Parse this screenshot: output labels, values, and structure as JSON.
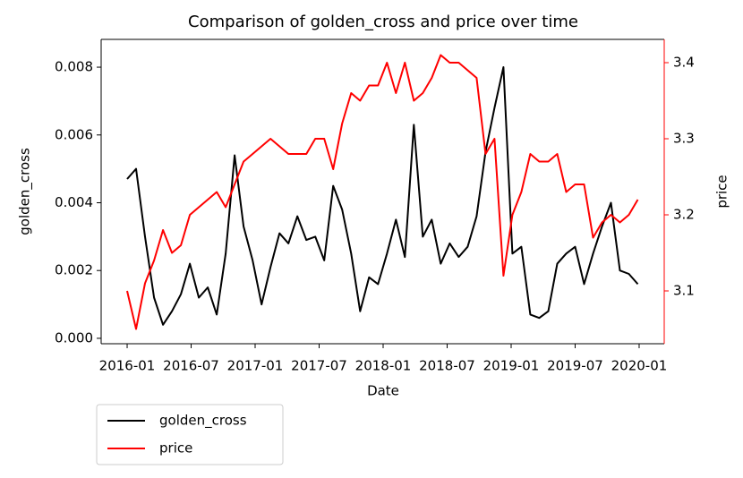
{
  "chart_data": {
    "type": "line",
    "title": "Comparison of golden_cross and price over time",
    "xlabel": "Date",
    "ylabel": "golden_cross",
    "y2label": "price",
    "x": [
      2016,
      2016.07,
      2016.14,
      2016.21,
      2016.28,
      2016.35,
      2016.42,
      2016.49,
      2016.56,
      2016.63,
      2016.7,
      2016.77,
      2016.84,
      2016.91,
      2016.98,
      2017.05,
      2017.12,
      2017.19,
      2017.26,
      2017.33,
      2017.4,
      2017.47,
      2017.54,
      2017.61,
      2017.68,
      2017.75,
      2017.82,
      2017.89,
      2017.96,
      2018.03,
      2018.1,
      2018.17,
      2018.24,
      2018.31,
      2018.38,
      2018.45,
      2018.52,
      2018.59,
      2018.66,
      2018.73,
      2018.8,
      2018.87,
      2018.94,
      2019.01,
      2019.08,
      2019.15,
      2019.22,
      2019.29,
      2019.36,
      2019.43,
      2019.5,
      2019.57,
      2019.64,
      2019.71,
      2019.78,
      2019.85,
      2019.92,
      2019.99
    ],
    "series": [
      {
        "name": "golden_cross",
        "color": "#000000",
        "values": [
          0.0047,
          0.005,
          0.003,
          0.0012,
          0.0004,
          0.0008,
          0.0013,
          0.0022,
          0.0012,
          0.0015,
          0.0007,
          0.0025,
          0.0054,
          0.0033,
          0.0023,
          0.001,
          0.0021,
          0.0031,
          0.0028,
          0.0036,
          0.0029,
          0.003,
          0.0023,
          0.0045,
          0.0038,
          0.0025,
          0.0008,
          0.0018,
          0.0016,
          0.0025,
          0.0035,
          0.0024,
          0.0063,
          0.003,
          0.0035,
          0.0022,
          0.0028,
          0.0024,
          0.0027,
          0.0036,
          0.0055,
          0.0068,
          0.008,
          0.0025,
          0.0027,
          0.0007,
          0.0006,
          0.0008,
          0.0022,
          0.0025,
          0.0027,
          0.0016,
          0.0025,
          0.0033,
          0.004,
          0.002,
          0.0019,
          0.0016
        ]
      },
      {
        "name": "price",
        "color": "#ff0000",
        "axis": "y2",
        "values": [
          3.1,
          3.05,
          3.11,
          3.14,
          3.18,
          3.15,
          3.16,
          3.2,
          3.21,
          3.22,
          3.23,
          3.21,
          3.24,
          3.27,
          3.28,
          3.29,
          3.3,
          3.29,
          3.28,
          3.28,
          3.28,
          3.3,
          3.3,
          3.26,
          3.32,
          3.36,
          3.35,
          3.37,
          3.37,
          3.4,
          3.36,
          3.4,
          3.35,
          3.36,
          3.38,
          3.41,
          3.4,
          3.4,
          3.39,
          3.38,
          3.28,
          3.3,
          3.12,
          3.2,
          3.23,
          3.28,
          3.27,
          3.27,
          3.28,
          3.23,
          3.24,
          3.24,
          3.17,
          3.19,
          3.2,
          3.19,
          3.2,
          3.22
        ]
      }
    ],
    "xlim": [
      2015.797,
      2020.196
    ],
    "xticks": [
      {
        "value": 2016,
        "label": "2016-01"
      },
      {
        "value": 2016.5,
        "label": "2016-07"
      },
      {
        "value": 2017,
        "label": "2017-01"
      },
      {
        "value": 2017.5,
        "label": "2017-07"
      },
      {
        "value": 2018,
        "label": "2018-01"
      },
      {
        "value": 2018.5,
        "label": "2018-07"
      },
      {
        "value": 2019,
        "label": "2019-01"
      },
      {
        "value": 2019.5,
        "label": "2019-07"
      },
      {
        "value": 2020,
        "label": "2020-01"
      }
    ],
    "ylim": [
      -0.00016,
      0.00882
    ],
    "yticks": [
      {
        "value": 0,
        "label": "0.000"
      },
      {
        "value": 0.002,
        "label": "0.002"
      },
      {
        "value": 0.004,
        "label": "0.004"
      },
      {
        "value": 0.006,
        "label": "0.006"
      },
      {
        "value": 0.008,
        "label": "0.008"
      }
    ],
    "y2lim": [
      3.0306,
      3.4306
    ],
    "y2ticks": [
      3.1,
      3.2,
      3.3,
      3.4
    ],
    "y2color": "#ff0000",
    "legend": "below-left"
  }
}
